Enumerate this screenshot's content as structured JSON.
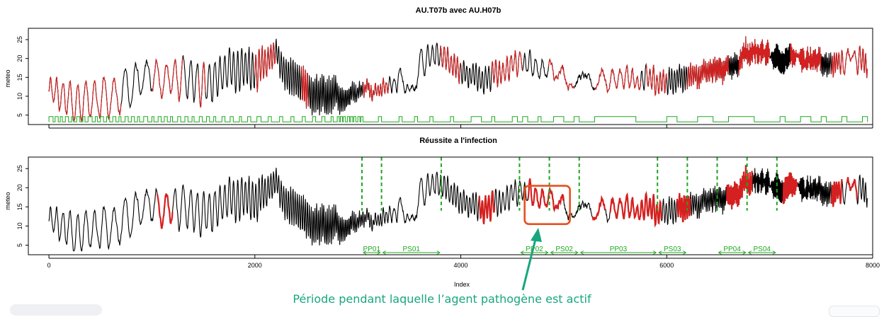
{
  "colors": {
    "series_primary": "#000000",
    "series_secondary": "#d42020",
    "binary": "#1ea81e",
    "period_lines": "#1ea81e",
    "highlight_box": "#e8501e",
    "arrow": "#17a67e",
    "annotation_text": "#17a67e"
  },
  "chart_data": [
    {
      "type": "line",
      "title": "AU.T07b avec AU.H07b",
      "xlabel": "",
      "ylabel": "meteo",
      "xlim": [
        -200,
        8000
      ],
      "ylim": [
        2.5,
        28
      ],
      "yticks": [
        5,
        10,
        15,
        20,
        25
      ],
      "xticks": [
        0,
        2000,
        4000,
        6000,
        8000
      ],
      "show_x_labels": false,
      "series": [
        {
          "name": "temperature",
          "color": "black",
          "anchors_x": [
            0,
            100,
            200,
            300,
            400,
            500,
            600,
            700,
            800,
            900,
            1000,
            1200,
            1400,
            1600,
            1800,
            2000,
            2100,
            2200,
            2300,
            2400,
            2500,
            2600,
            2700,
            2800,
            2900,
            3000,
            3100,
            3200,
            3300,
            3400,
            3500,
            3600,
            3700,
            3800,
            3900,
            4000,
            4200,
            4400,
            4500,
            4600,
            4800,
            5000,
            5200,
            5400,
            5600,
            5800,
            6000,
            6200,
            6400,
            6600,
            6800,
            6900,
            7000,
            7200,
            7400,
            7600,
            7800,
            7900,
            7950
          ],
          "anchors_mean": [
            11,
            10,
            9,
            8.5,
            8.5,
            9,
            10,
            11,
            13,
            14,
            15,
            14.5,
            14,
            15,
            17,
            17.5,
            19,
            21,
            16,
            13,
            11,
            10,
            10,
            9.5,
            10.5,
            12,
            12.5,
            12.5,
            13,
            14,
            15,
            17,
            20,
            21,
            19,
            16,
            15,
            16,
            18,
            20,
            17,
            16,
            15,
            14.5,
            14,
            14,
            14,
            16,
            16,
            18,
            21,
            22,
            21,
            20,
            19,
            19,
            19,
            19,
            17
          ],
          "anchors_amp": [
            3,
            4,
            5,
            5,
            5,
            5,
            5,
            5,
            5,
            4,
            4,
            4,
            5,
            5,
            5,
            5,
            4,
            3,
            4,
            5,
            5,
            5,
            5,
            4,
            3,
            2,
            1.5,
            1.5,
            2,
            2.5,
            3,
            3,
            3,
            3,
            3,
            3,
            3,
            3,
            3,
            3,
            2.5,
            2.5,
            2.5,
            2.5,
            2.5,
            2.5,
            3,
            3,
            3,
            3,
            3,
            3,
            3,
            3,
            3,
            3,
            3,
            3,
            3
          ]
        },
        {
          "name": "humidity overlay",
          "color": "red",
          "segments": [
            [
              0,
              700
            ],
            [
              1000,
              1300
            ],
            [
              1450,
              1520
            ],
            [
              2000,
              2200
            ],
            [
              2450,
              2520
            ],
            [
              3050,
              3300
            ],
            [
              3800,
              4000
            ],
            [
              4300,
              4600
            ],
            [
              4850,
              5100
            ],
            [
              5300,
              5750
            ],
            [
              5800,
              6000
            ],
            [
              6200,
              6600
            ],
            [
              6700,
              7000
            ],
            [
              7200,
              7500
            ],
            [
              7600,
              7950
            ]
          ]
        },
        {
          "name": "binary indicator",
          "color": "green",
          "low": 3.2,
          "high": 4.6,
          "pulses": [
            [
              0,
              40
            ],
            [
              60,
              90
            ],
            [
              110,
              130
            ],
            [
              160,
              190
            ],
            [
              220,
              240
            ],
            [
              270,
              300
            ],
            [
              330,
              350
            ],
            [
              380,
              420
            ],
            [
              450,
              470
            ],
            [
              500,
              530
            ],
            [
              560,
              590
            ],
            [
              620,
              650
            ],
            [
              680,
              700
            ],
            [
              740,
              770
            ],
            [
              800,
              830
            ],
            [
              860,
              880
            ],
            [
              920,
              960
            ],
            [
              1000,
              1020
            ],
            [
              1060,
              1090
            ],
            [
              1120,
              1150
            ],
            [
              1180,
              1200
            ],
            [
              1250,
              1280
            ],
            [
              1320,
              1350
            ],
            [
              1390,
              1410
            ],
            [
              1460,
              1490
            ],
            [
              1530,
              1560
            ],
            [
              1600,
              1620
            ],
            [
              1680,
              1710
            ],
            [
              1760,
              1790
            ],
            [
              1850,
              1870
            ],
            [
              1930,
              1960
            ],
            [
              2020,
              2060
            ],
            [
              2130,
              2160
            ],
            [
              2240,
              2270
            ],
            [
              2350,
              2380
            ],
            [
              2460,
              2490
            ],
            [
              2560,
              2590
            ],
            [
              2650,
              2680
            ],
            [
              2740,
              2760
            ],
            [
              2800,
              2820
            ],
            [
              2830,
              2850
            ],
            [
              2860,
              2880
            ],
            [
              2900,
              2920
            ],
            [
              2930,
              2950
            ],
            [
              2960,
              2980
            ],
            [
              3000,
              3020
            ],
            [
              3030,
              3050
            ],
            [
              3200,
              3230
            ],
            [
              3400,
              3430
            ],
            [
              3550,
              3580
            ],
            [
              3700,
              3730
            ],
            [
              3900,
              3930
            ],
            [
              4100,
              4200
            ],
            [
              4300,
              4330
            ],
            [
              4500,
              4550
            ],
            [
              4600,
              4650
            ],
            [
              4750,
              4780
            ],
            [
              4900,
              5000
            ],
            [
              5100,
              5150
            ],
            [
              5300,
              5700
            ],
            [
              6000,
              6100
            ],
            [
              6300,
              6450
            ],
            [
              6600,
              6850
            ],
            [
              7100,
              7150
            ],
            [
              7300,
              7400
            ],
            [
              7500,
              7550
            ],
            [
              7700,
              7750
            ],
            [
              7900,
              7950
            ]
          ]
        }
      ]
    },
    {
      "type": "line",
      "title": "Réussite a  l'infection",
      "xlabel": "Index",
      "ylabel": "meteo",
      "xlim": [
        -200,
        8000
      ],
      "ylim": [
        2.5,
        28
      ],
      "yticks": [
        5,
        10,
        15,
        20,
        25
      ],
      "xticks": [
        0,
        2000,
        4000,
        6000,
        8000
      ],
      "show_x_labels": true,
      "series": [
        {
          "name": "temperature",
          "color": "black"
        },
        {
          "name": "infection success",
          "color": "red",
          "segments": [
            [
              1050,
              1200
            ],
            [
              4180,
              4330
            ],
            [
              4650,
              5000
            ],
            [
              5280,
              5400
            ],
            [
              5450,
              5950
            ],
            [
              6100,
              6230
            ],
            [
              6580,
              6720
            ],
            [
              6700,
              6830
            ],
            [
              7130,
              7270
            ],
            [
              7600,
              7700
            ],
            [
              7750,
              7850
            ]
          ]
        }
      ],
      "period_boundaries": [
        3040,
        3230,
        3810,
        4570,
        4860,
        5150,
        5910,
        6200,
        6490,
        6780,
        7070
      ],
      "periods": [
        {
          "label": "PP01",
          "start": 3040,
          "end": 3230
        },
        {
          "label": "PS01",
          "start": 3230,
          "end": 3810
        },
        {
          "label": "PP02",
          "start": 4570,
          "end": 4860
        },
        {
          "label": "PS02",
          "start": 4860,
          "end": 5150
        },
        {
          "label": "PP03",
          "start": 5150,
          "end": 5910
        },
        {
          "label": "PS03",
          "start": 5910,
          "end": 6200
        },
        {
          "label": "PP04",
          "start": 6490,
          "end": 6780
        },
        {
          "label": "PS04",
          "start": 6780,
          "end": 7070
        }
      ],
      "highlight": {
        "x_range": [
          4620,
          5060
        ],
        "y_range": [
          10.5,
          20.5
        ]
      }
    }
  ],
  "annotation": {
    "text": "Période pendant laquelle l’agent pathogène est actif"
  }
}
